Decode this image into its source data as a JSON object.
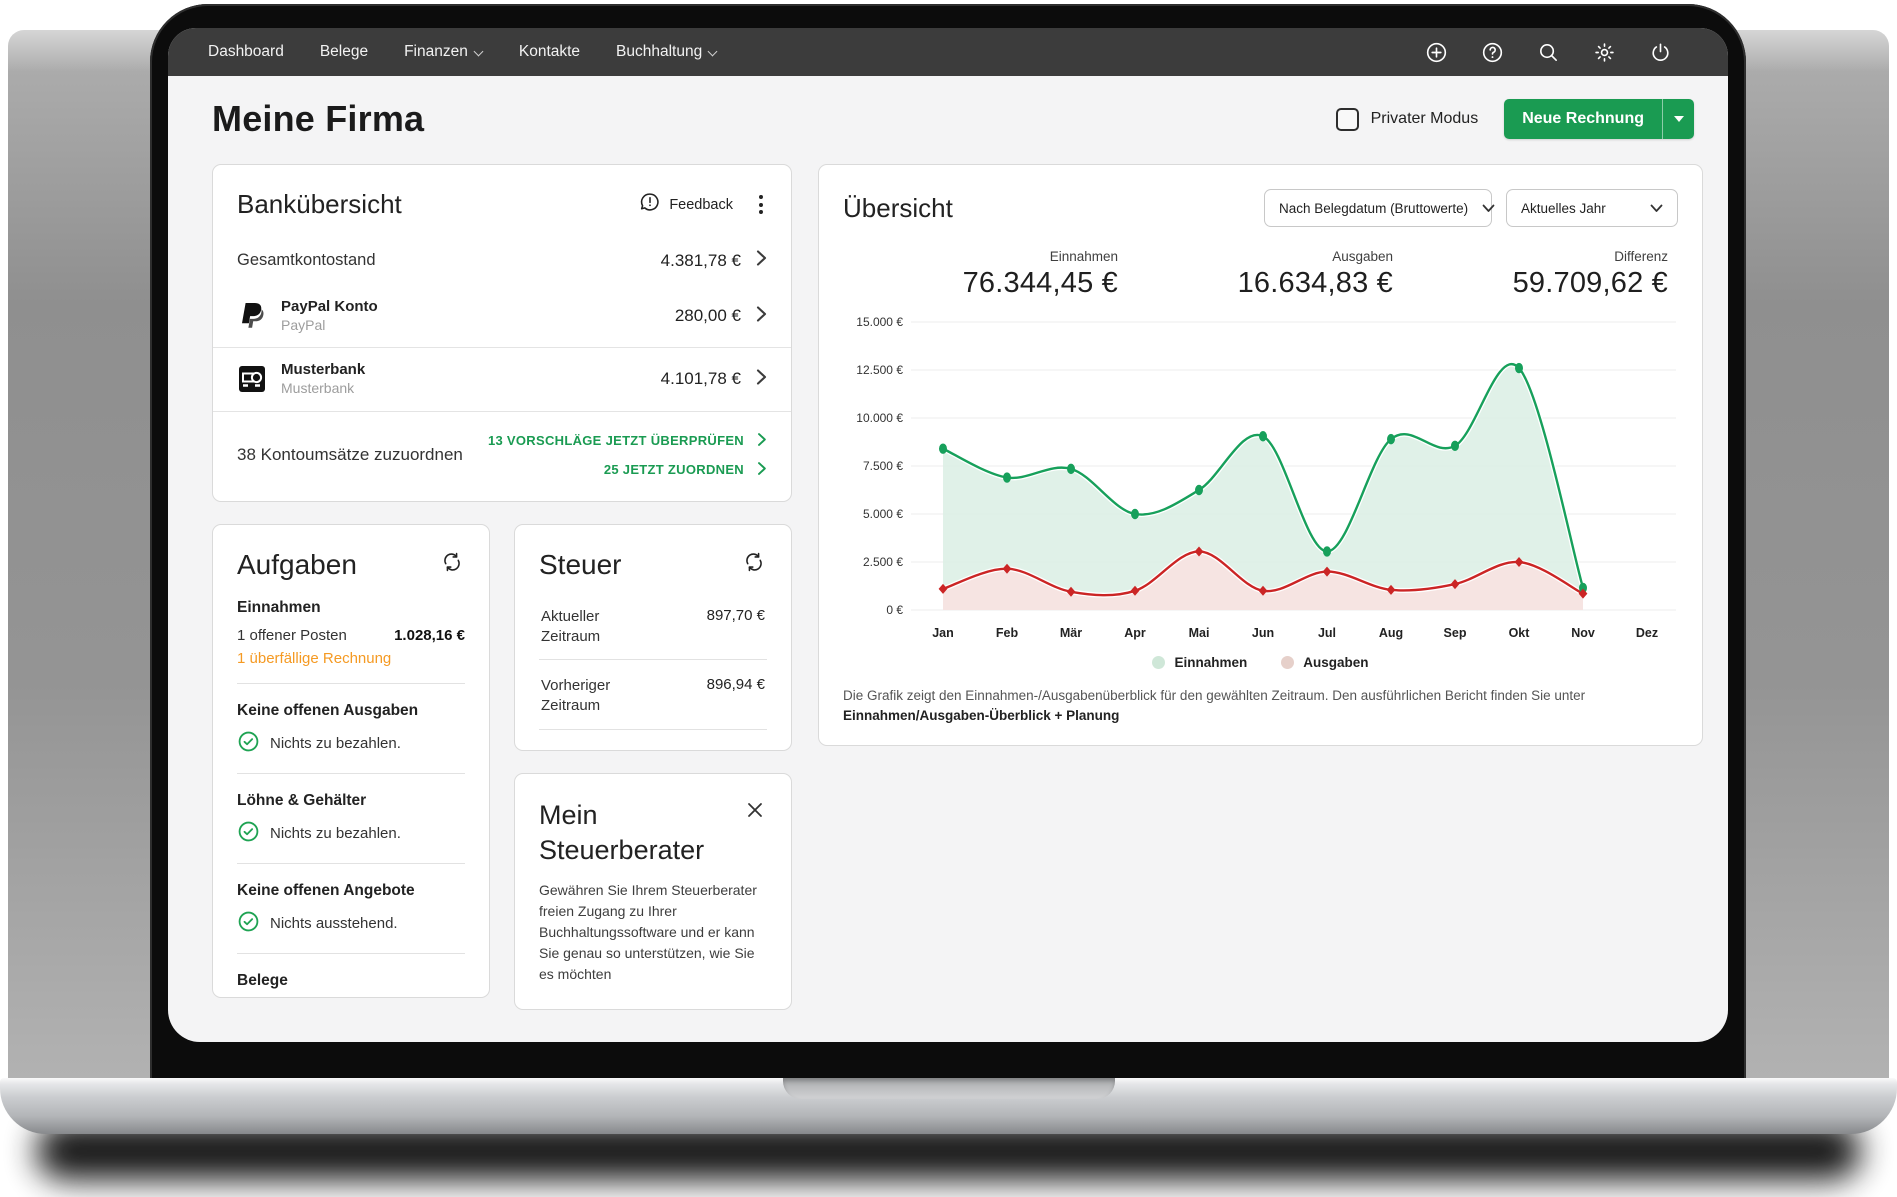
{
  "nav": {
    "items": [
      {
        "label": "Dashboard",
        "dropdown": false
      },
      {
        "label": "Belege",
        "dropdown": false
      },
      {
        "label": "Finanzen",
        "dropdown": true
      },
      {
        "label": "Kontakte",
        "dropdown": false
      },
      {
        "label": "Buchhaltung",
        "dropdown": true
      }
    ],
    "icons": [
      "plus-circle",
      "help-circle",
      "search",
      "settings",
      "power"
    ]
  },
  "header": {
    "title": "Meine Firma",
    "private_mode_label": "Privater Modus",
    "new_invoice_label": "Neue Rechnung"
  },
  "bank": {
    "title": "Bankübersicht",
    "feedback_label": "Feedback",
    "total": {
      "label": "Gesamtkontostand",
      "value": "4.381,78 €"
    },
    "accounts": [
      {
        "icon": "paypal",
        "name": "PayPal Konto",
        "sub": "PayPal",
        "value": "280,00 €"
      },
      {
        "icon": "bank",
        "name": "Musterbank",
        "sub": "Musterbank",
        "value": "4.101,78 €"
      }
    ],
    "match": {
      "label": "38 Kontoumsätze zuzuordnen",
      "links": [
        "13 VORSCHLÄGE JETZT ÜBERPRÜFEN",
        "25 JETZT ZUORDNEN"
      ]
    }
  },
  "tasks": {
    "title": "Aufgaben",
    "sections": [
      {
        "heading": "Einnahmen",
        "rows": [
          {
            "text": "1 offener Posten",
            "value": "1.028,16 €"
          },
          {
            "text": "1 überfällige Rechnung",
            "style": "warning"
          }
        ]
      },
      {
        "heading": "Keine offenen Ausgaben",
        "rows": [
          {
            "text": "Nichts zu bezahlen.",
            "icon": "check"
          }
        ]
      },
      {
        "heading": "Löhne & Gehälter",
        "rows": [
          {
            "text": "Nichts zu bezahlen.",
            "icon": "check"
          }
        ]
      },
      {
        "heading": "Keine offenen Angebote",
        "rows": [
          {
            "text": "Nichts ausstehend.",
            "icon": "check"
          }
        ]
      },
      {
        "heading": "Belege",
        "rows": []
      }
    ]
  },
  "tax": {
    "title": "Steuer",
    "rows": [
      {
        "label": "Aktueller Zeitraum",
        "value": "897,70 €"
      },
      {
        "label": "Vorheriger Zeitraum",
        "value": "896,94 €"
      }
    ]
  },
  "advisor": {
    "title": "Mein Steuerberater",
    "body": "Gewähren Sie Ihrem Steuerberater freien Zugang zu Ihrer Buchhaltungssoftware und er kann Sie genau so unterstützen, wie Sie es möchten"
  },
  "overview": {
    "title": "Übersicht",
    "filters": [
      "Nach Belegdatum (Bruttowerte)",
      "Aktuelles Jahr"
    ],
    "stats": [
      {
        "label": "Einnahmen",
        "value": "76.344,45 €"
      },
      {
        "label": "Ausgaben",
        "value": "16.634,83 €"
      },
      {
        "label": "Differenz",
        "value": "59.709,62 €"
      }
    ],
    "legend": [
      {
        "label": "Einnahmen",
        "dot": "#cfe7d8"
      },
      {
        "label": "Ausgaben",
        "dot": "#e6d0ca"
      }
    ],
    "footnote": "Die Grafik zeigt den Einnahmen-/Ausgabenüberblick für den gewählten Zeitraum. Den ausführlichen Bericht finden Sie unter",
    "footnote_bold": "Einnahmen/Ausgaben-Überblick + Planung"
  },
  "chart_data": {
    "type": "area",
    "title": "Einnahmen/Ausgaben Übersicht",
    "categories": [
      "Jan",
      "Feb",
      "Mär",
      "Apr",
      "Mai",
      "Jun",
      "Jul",
      "Aug",
      "Sep",
      "Okt",
      "Nov",
      "Dez"
    ],
    "series": [
      {
        "name": "Einnahmen",
        "color": "#17a05b",
        "fill": "#ddefe5",
        "marker": "circle",
        "values": [
          8400,
          6900,
          7350,
          5000,
          6250,
          9050,
          3050,
          8900,
          8550,
          12600,
          1150,
          null
        ]
      },
      {
        "name": "Ausgaben",
        "color": "#cb2525",
        "fill": "#f8e2e1",
        "marker": "diamond",
        "values": [
          1100,
          2150,
          950,
          1000,
          3050,
          1000,
          2000,
          1050,
          1350,
          2500,
          850,
          null
        ]
      }
    ],
    "ylim": [
      0,
      15000
    ],
    "y_ticks": [
      {
        "v": 0,
        "label": "0 €"
      },
      {
        "v": 2500,
        "label": "2.500 €"
      },
      {
        "v": 5000,
        "label": "5.000 €"
      },
      {
        "v": 7500,
        "label": "7.500 €"
      },
      {
        "v": 10000,
        "label": "10.000 €"
      },
      {
        "v": 12500,
        "label": "12.500 €"
      },
      {
        "v": 15000,
        "label": "15.000 €"
      }
    ],
    "grid": "horizontal",
    "legend_position": "bottom"
  }
}
